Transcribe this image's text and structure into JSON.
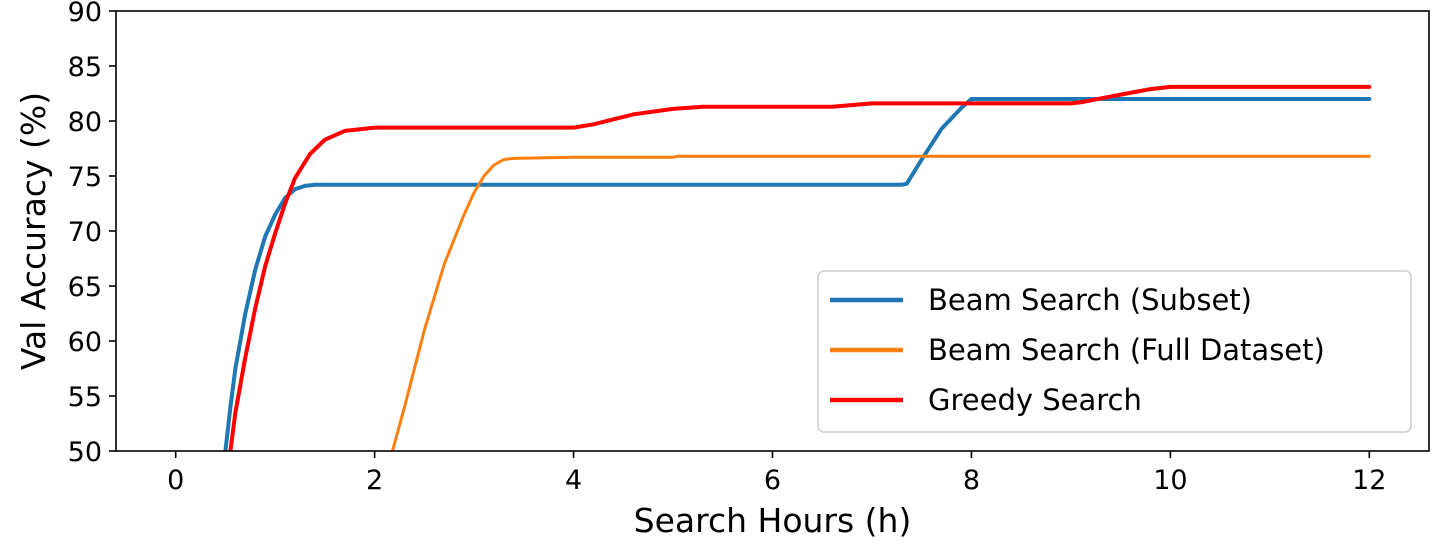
{
  "chart_data": {
    "type": "line",
    "xlabel": "Search Hours (h)",
    "ylabel": "Val Accuracy (%)",
    "xlim": [
      -0.6,
      12.6
    ],
    "ylim": [
      50,
      90
    ],
    "xticks": [
      0,
      2,
      4,
      6,
      8,
      10,
      12
    ],
    "yticks": [
      50,
      55,
      60,
      65,
      70,
      75,
      80,
      85,
      90
    ],
    "grid": false,
    "legend_position": "lower-right",
    "series": [
      {
        "name": "Beam Search (Subset)",
        "color": "#1f77b4",
        "x": [
          0.5,
          0.55,
          0.6,
          0.7,
          0.8,
          0.9,
          1.0,
          1.1,
          1.2,
          1.3,
          1.4,
          2.0,
          4.0,
          6.0,
          7.3,
          7.35,
          7.5,
          7.7,
          7.9,
          8.0,
          8.5,
          10.0,
          12.0
        ],
        "y": [
          50,
          54,
          57.5,
          62.5,
          66.5,
          69.5,
          71.5,
          73.0,
          73.8,
          74.1,
          74.2,
          74.2,
          74.2,
          74.2,
          74.2,
          74.3,
          76.5,
          79.3,
          81.2,
          82.0,
          82.0,
          82.0,
          82.0
        ]
      },
      {
        "name": "Beam Search (Full Dataset)",
        "color": "#ff7f0e",
        "x": [
          2.18,
          2.3,
          2.5,
          2.7,
          2.9,
          3.0,
          3.1,
          3.2,
          3.3,
          3.4,
          4.0,
          5.0,
          5.05,
          6.0,
          8.0,
          10.0,
          12.0
        ],
        "y": [
          50,
          54,
          61,
          67,
          71.5,
          73.5,
          75.0,
          76.0,
          76.5,
          76.6,
          76.7,
          76.7,
          76.8,
          76.8,
          76.8,
          76.8,
          76.8
        ],
        "line_width": 3
      },
      {
        "name": "Greedy Search",
        "color": "#ff0000",
        "x": [
          0.55,
          0.6,
          0.7,
          0.8,
          0.9,
          1.0,
          1.1,
          1.2,
          1.35,
          1.5,
          1.7,
          1.9,
          2.0,
          3.0,
          4.0,
          4.2,
          4.6,
          5.0,
          5.3,
          6.0,
          6.6,
          7.0,
          8.0,
          9.0,
          9.1,
          9.5,
          9.8,
          10.0,
          11.0,
          12.0
        ],
        "y": [
          50,
          53.5,
          58.5,
          63.0,
          66.8,
          69.8,
          72.5,
          74.8,
          77.0,
          78.3,
          79.1,
          79.3,
          79.4,
          79.4,
          79.4,
          79.7,
          80.6,
          81.1,
          81.3,
          81.3,
          81.3,
          81.6,
          81.6,
          81.6,
          81.7,
          82.4,
          82.9,
          83.1,
          83.1,
          83.1
        ]
      }
    ]
  }
}
